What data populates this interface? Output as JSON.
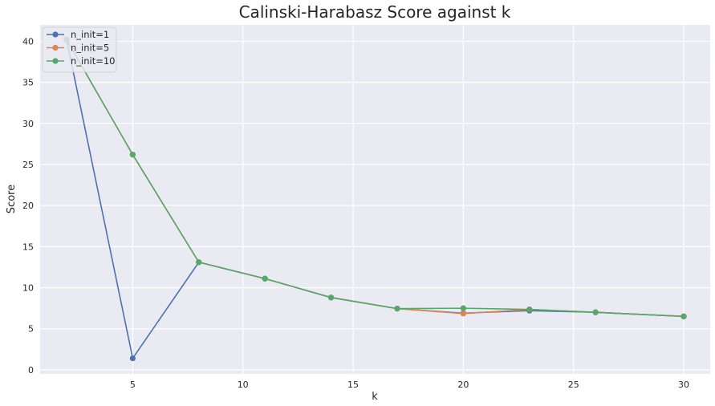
{
  "chart_data": {
    "type": "line",
    "title": "Calinski-Harabasz Score against k",
    "xlabel": "k",
    "ylabel": "Score",
    "x": [
      2,
      5,
      8,
      11,
      14,
      17,
      20,
      23,
      26,
      29,
      30
    ],
    "xlim": [
      0.8,
      31.2
    ],
    "ylim": [
      -0.5,
      42
    ],
    "xticks": [
      5,
      10,
      15,
      20,
      25,
      30
    ],
    "yticks": [
      0,
      5,
      10,
      15,
      20,
      25,
      30,
      35,
      40
    ],
    "grid": true,
    "legend_position": "top-left",
    "series": [
      {
        "name": "n_init=1",
        "color": "#4c72b0",
        "x": [
          2,
          5,
          8,
          11,
          14,
          17,
          20,
          23,
          26,
          30
        ],
        "values": [
          40.2,
          1.4,
          13.1,
          11.1,
          8.8,
          7.45,
          6.9,
          7.2,
          7.0,
          6.5
        ]
      },
      {
        "name": "n_init=5",
        "color": "#dd8452",
        "x": [
          2,
          5,
          8,
          11,
          14,
          17,
          20,
          23,
          26,
          30
        ],
        "values": [
          40.2,
          26.2,
          13.1,
          11.1,
          8.8,
          7.45,
          6.85,
          7.35,
          7.0,
          6.5
        ]
      },
      {
        "name": "n_init=10",
        "color": "#55a868",
        "x": [
          2,
          5,
          8,
          11,
          14,
          17,
          20,
          23,
          26,
          30
        ],
        "values": [
          40.2,
          26.2,
          13.1,
          11.1,
          8.8,
          7.45,
          7.5,
          7.35,
          7.0,
          6.5
        ]
      }
    ]
  }
}
